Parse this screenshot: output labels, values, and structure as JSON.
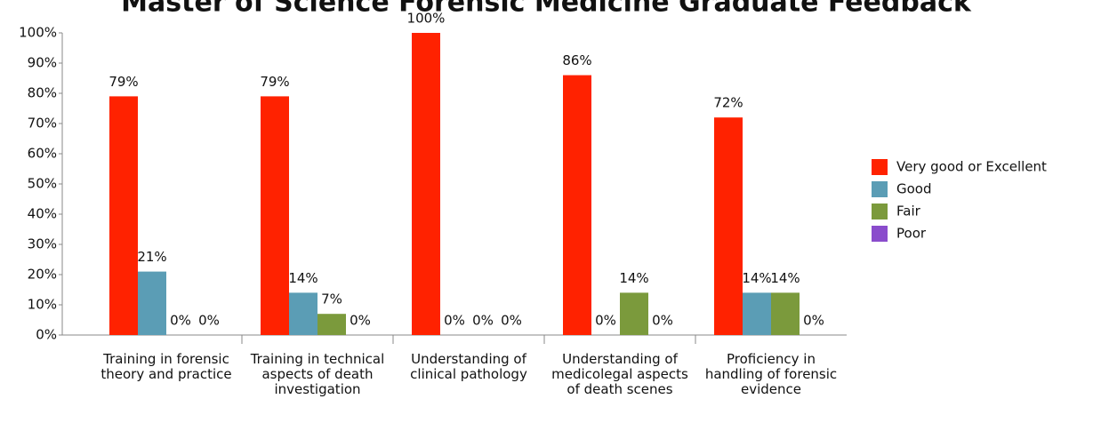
{
  "chart_data": {
    "type": "bar",
    "title": "Master of Science Forensic Medicine Graduate Feedback",
    "categories": [
      "Training in forensic theory and practice",
      "Training in technical aspects of death investigation",
      "Understanding of clinical pathology",
      "Understanding of medicolegal aspects of death scenes",
      "Proficiency in handling of forensic evidence"
    ],
    "series": [
      {
        "name": "Very good or Excellent",
        "color": "#ff2200",
        "values": [
          79,
          79,
          100,
          86,
          72
        ],
        "value_labels": [
          "79%",
          "79%",
          "100%",
          "86%",
          "72%"
        ]
      },
      {
        "name": "Good",
        "color": "#5b9db5",
        "values": [
          21,
          14,
          0,
          0,
          14
        ],
        "value_labels": [
          "21%",
          "14%",
          "0%",
          "0%",
          "14%"
        ]
      },
      {
        "name": "Fair",
        "color": "#7b9a3c",
        "values": [
          0,
          7,
          0,
          14,
          14
        ],
        "value_labels": [
          "0%",
          "7%",
          "0%",
          "14%",
          "14%"
        ]
      },
      {
        "name": "Poor",
        "color": "#8a4ccc",
        "values": [
          0,
          0,
          0,
          0,
          0
        ],
        "value_labels": [
          "0%",
          "0%",
          "0%",
          "0%",
          "0%"
        ]
      }
    ],
    "ylim": [
      0,
      100
    ],
    "yticks": [
      {
        "value": 0,
        "label": "0%"
      },
      {
        "value": 10,
        "label": "10%"
      },
      {
        "value": 20,
        "label": "20%"
      },
      {
        "value": 30,
        "label": "30%"
      },
      {
        "value": 40,
        "label": "40%"
      },
      {
        "value": 50,
        "label": "50%"
      },
      {
        "value": 60,
        "label": "60%"
      },
      {
        "value": 70,
        "label": "70%"
      },
      {
        "value": 80,
        "label": "80%"
      },
      {
        "value": 90,
        "label": "90%"
      },
      {
        "value": 100,
        "label": "100%"
      }
    ],
    "legend": "right"
  }
}
